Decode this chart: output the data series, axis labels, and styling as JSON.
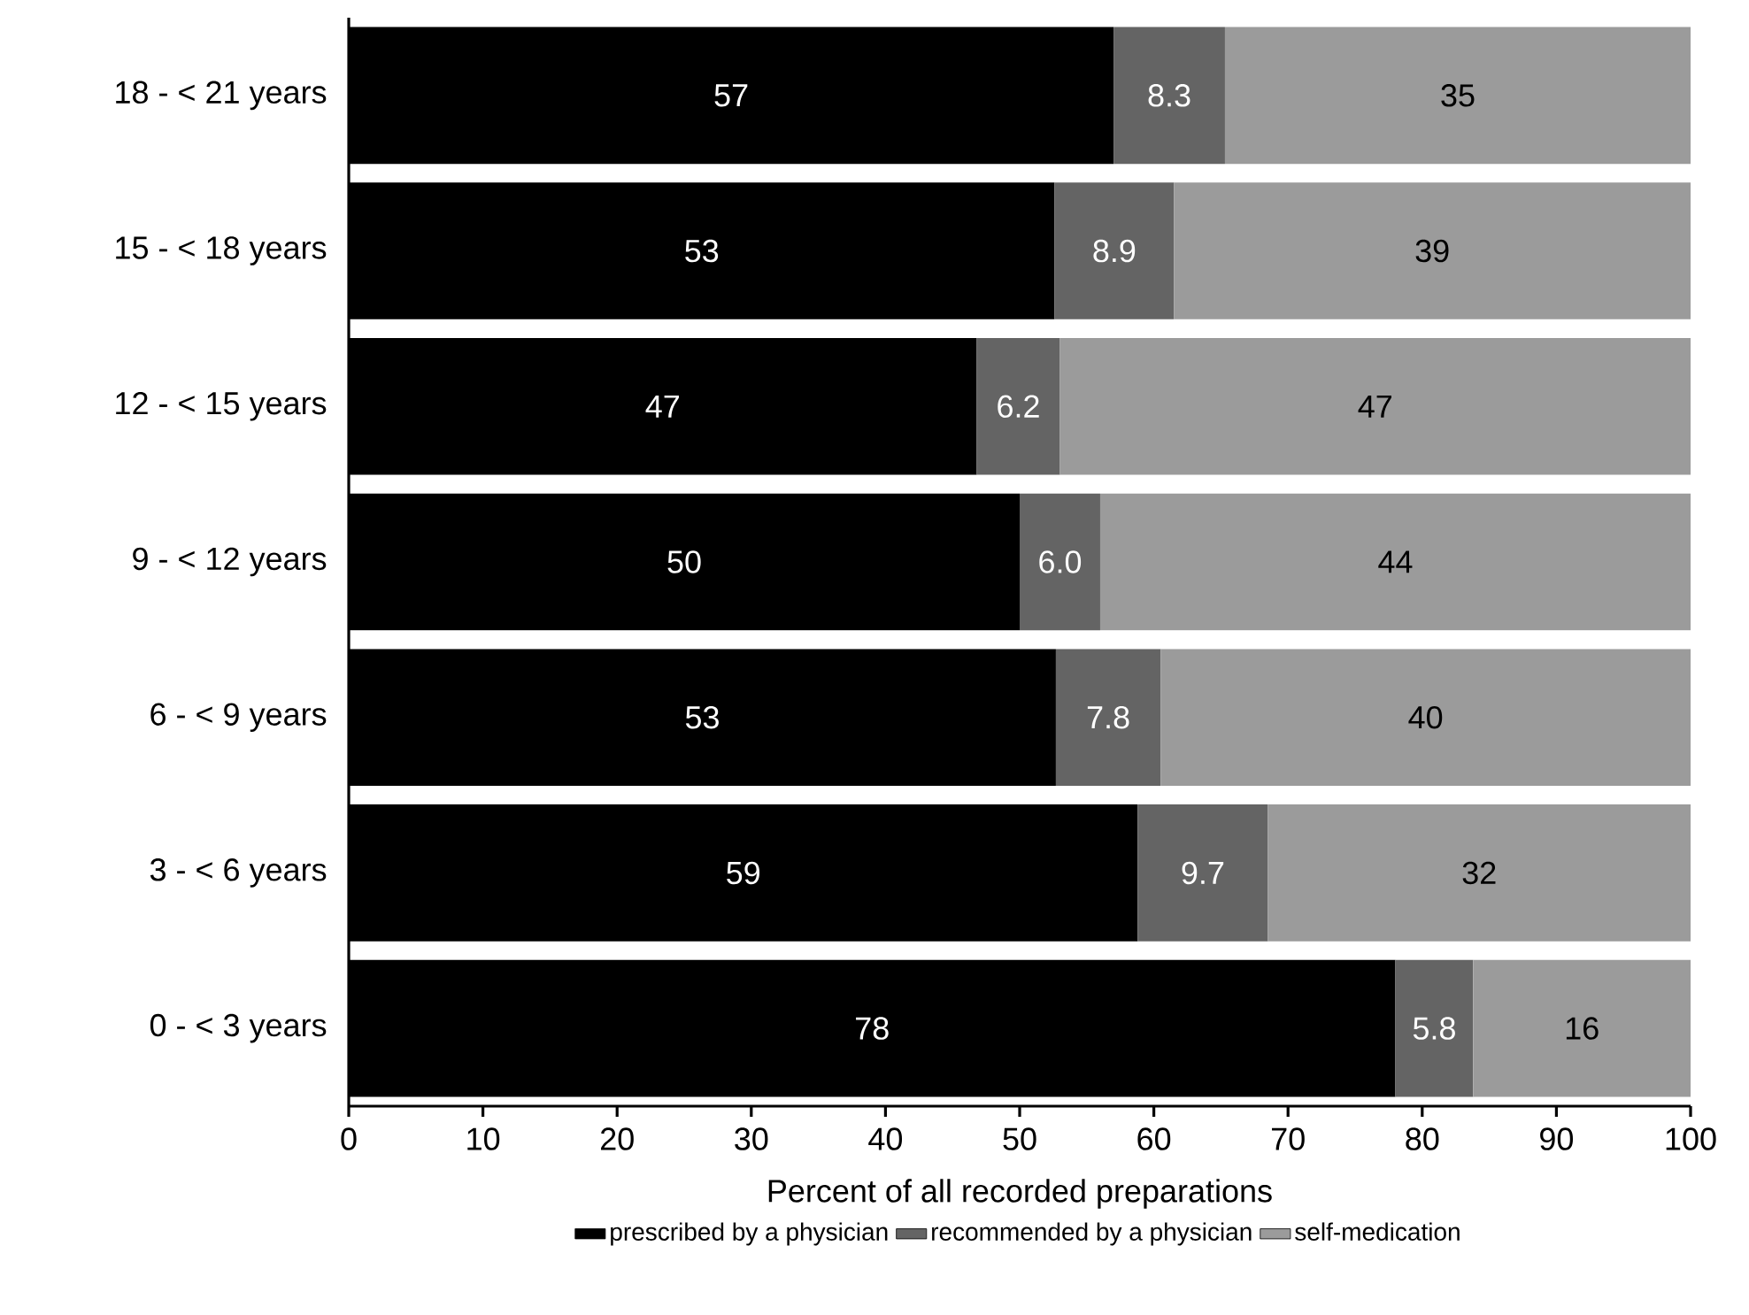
{
  "chart_data": {
    "type": "bar",
    "orientation": "horizontal",
    "stacked": true,
    "categories": [
      "18 - < 21 years",
      "15 - < 18 years",
      "12 - < 15 years",
      "9 - < 12 years",
      "6 - < 9 years",
      "3 - < 6 years",
      "0 - < 3 years"
    ],
    "series": [
      {
        "name": "prescribed by a physician",
        "color": "#000000",
        "values": [
          57,
          52.6,
          46.8,
          50,
          52.7,
          58.8,
          78
        ],
        "value_labels": [
          "57",
          "53",
          "47",
          "50",
          "53",
          "59",
          "78"
        ]
      },
      {
        "name": "recommended by a physician",
        "color": "#646464",
        "values": [
          8.3,
          8.9,
          6.2,
          6.0,
          7.8,
          9.7,
          5.8
        ],
        "value_labels": [
          "8.3",
          "8.9",
          "6.2",
          "6.0",
          "7.8",
          "9.7",
          "5.8"
        ]
      },
      {
        "name": "self-medication",
        "color": "#9b9b9b",
        "values": [
          34.7,
          38.5,
          47.0,
          44,
          39.5,
          31.5,
          16.2
        ],
        "value_labels": [
          "35",
          "39",
          "47",
          "44",
          "40",
          "32",
          "16"
        ]
      }
    ],
    "xlabel": "Percent of all recorded preparations",
    "xlim": [
      0,
      100
    ],
    "xticks": [
      0,
      10,
      20,
      30,
      40,
      50,
      60,
      70,
      80,
      90,
      100
    ],
    "legend": "bottom",
    "grid": false
  }
}
